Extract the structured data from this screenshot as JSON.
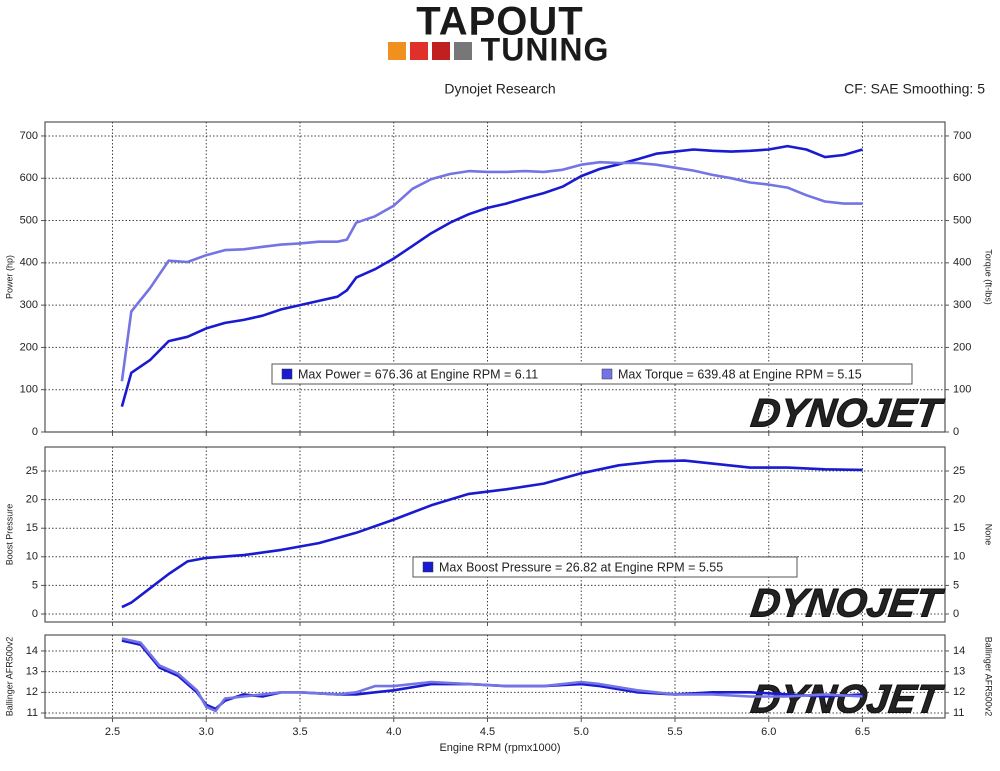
{
  "header": {
    "logo_top": "TAPOUT",
    "logo_bottom": "TUNING",
    "title": "Dynojet Research",
    "settings": "CF: SAE Smoothing: 5"
  },
  "brand": {
    "watermark": "DYNOJET"
  },
  "chart_data": [
    {
      "type": "line",
      "y_label": "Power (hp)",
      "y2_label": "Torque (ft-lbs)",
      "x": [
        2.55,
        2.6,
        2.7,
        2.8,
        2.9,
        3.0,
        3.1,
        3.2,
        3.3,
        3.4,
        3.5,
        3.6,
        3.7,
        3.75,
        3.8,
        3.9,
        4.0,
        4.1,
        4.2,
        4.3,
        4.4,
        4.5,
        4.6,
        4.7,
        4.8,
        4.9,
        5.0,
        5.1,
        5.2,
        5.3,
        5.4,
        5.5,
        5.6,
        5.7,
        5.8,
        5.9,
        6.0,
        6.1,
        6.2,
        6.3,
        6.4,
        6.5
      ],
      "series": [
        {
          "name": "Max Power = 676.36 at Engine RPM = 6.11",
          "color": "#1a1ad0",
          "values": [
            60,
            140,
            170,
            215,
            225,
            245,
            258,
            265,
            275,
            290,
            300,
            310,
            320,
            335,
            365,
            385,
            410,
            440,
            470,
            495,
            515,
            530,
            540,
            553,
            565,
            580,
            605,
            622,
            633,
            645,
            658,
            663,
            668,
            665,
            663,
            665,
            668,
            676,
            668,
            650,
            655,
            668
          ]
        },
        {
          "name": "Max Torque = 639.48 at Engine RPM = 5.15",
          "color": "#7474e4",
          "axis": "y2",
          "values": [
            120,
            285,
            340,
            405,
            402,
            418,
            430,
            432,
            438,
            443,
            446,
            450,
            450,
            455,
            495,
            510,
            535,
            575,
            598,
            610,
            617,
            615,
            615,
            617,
            615,
            620,
            632,
            638,
            636,
            636,
            632,
            625,
            618,
            608,
            600,
            590,
            585,
            578,
            560,
            545,
            540,
            540
          ]
        }
      ],
      "xlim": [
        2.14,
        6.94
      ],
      "xticks": [
        2.5,
        3,
        3.5,
        4,
        4.5,
        5,
        5.5,
        6,
        6.5
      ],
      "ylim": [
        0,
        733
      ],
      "yticks": [
        0,
        100,
        200,
        300,
        400,
        500,
        600,
        700
      ],
      "y2lim": [
        0,
        733
      ],
      "y2ticks": [
        0,
        100,
        200,
        300,
        400,
        500,
        600,
        700
      ],
      "grid": true
    },
    {
      "type": "line",
      "y_label": "Boost Pressure",
      "y2_label": "None",
      "x": [
        2.55,
        2.6,
        2.7,
        2.8,
        2.9,
        3.0,
        3.2,
        3.4,
        3.6,
        3.8,
        4.0,
        4.2,
        4.4,
        4.6,
        4.8,
        5.0,
        5.2,
        5.4,
        5.55,
        5.7,
        5.9,
        6.1,
        6.3,
        6.5
      ],
      "series": [
        {
          "name": "Max Boost Pressure = 26.82 at Engine RPM = 5.55",
          "color": "#1a1ad0",
          "values": [
            1.2,
            2,
            4.5,
            7,
            9.2,
            9.8,
            10.3,
            11.2,
            12.4,
            14.2,
            16.5,
            19,
            21,
            21.8,
            22.8,
            24.6,
            26,
            26.7,
            26.82,
            26.3,
            25.6,
            25.6,
            25.3,
            25.2
          ]
        }
      ],
      "xlim": [
        2.14,
        6.94
      ],
      "xticks": [
        2.5,
        3,
        3.5,
        4,
        4.5,
        5,
        5.5,
        6,
        6.5
      ],
      "ylim": [
        -1.4,
        29.2
      ],
      "yticks": [
        0,
        5,
        10,
        15,
        20,
        25
      ],
      "y2lim": [
        -1.4,
        29.2
      ],
      "y2ticks": [
        0,
        5,
        10,
        15,
        20,
        25
      ],
      "grid": true
    },
    {
      "type": "line",
      "y_label": "Ballinger AFR500v2",
      "y2_label": "Ballinger AFR500v2",
      "x_label": "Engine RPM (rpmx1000)",
      "x": [
        2.55,
        2.65,
        2.75,
        2.85,
        2.95,
        3.0,
        3.05,
        3.1,
        3.2,
        3.3,
        3.4,
        3.5,
        3.7,
        3.8,
        3.9,
        4.0,
        4.2,
        4.4,
        4.6,
        4.8,
        5.0,
        5.1,
        5.3,
        5.5,
        5.7,
        5.9,
        6.1,
        6.3,
        6.5
      ],
      "series": [
        {
          "color": "#1a1ad0",
          "values": [
            14.5,
            14.3,
            13.2,
            12.8,
            12.0,
            11.4,
            11.2,
            11.6,
            11.9,
            11.8,
            12.0,
            12.0,
            11.9,
            11.9,
            12.0,
            12.1,
            12.4,
            12.4,
            12.3,
            12.3,
            12.4,
            12.3,
            12.0,
            11.9,
            12.0,
            12.0,
            11.9,
            11.8,
            11.9
          ]
        },
        {
          "color": "#7474e4",
          "values": [
            14.6,
            14.4,
            13.3,
            12.9,
            12.1,
            11.3,
            11.1,
            11.7,
            11.8,
            11.9,
            12.0,
            12.0,
            11.9,
            12.0,
            12.3,
            12.3,
            12.5,
            12.4,
            12.3,
            12.3,
            12.5,
            12.4,
            12.1,
            11.9,
            11.9,
            11.8,
            11.8,
            11.9,
            11.8
          ]
        }
      ],
      "xlim": [
        2.14,
        6.94
      ],
      "xticks": [
        2.5,
        {
          "value": 3,
          "label": "3.0"
        },
        3.5,
        {
          "value": 4,
          "label": "4.0"
        },
        4.5,
        {
          "value": 5,
          "label": "5.0"
        },
        5.5,
        {
          "value": 6,
          "label": "6.0"
        },
        6.5
      ],
      "ylim": [
        10.76,
        14.77
      ],
      "yticks": [
        11,
        12,
        13,
        14
      ],
      "y2lim": [
        10.76,
        14.77
      ],
      "y2ticks": [
        11,
        12,
        13,
        14
      ],
      "grid": true
    }
  ]
}
